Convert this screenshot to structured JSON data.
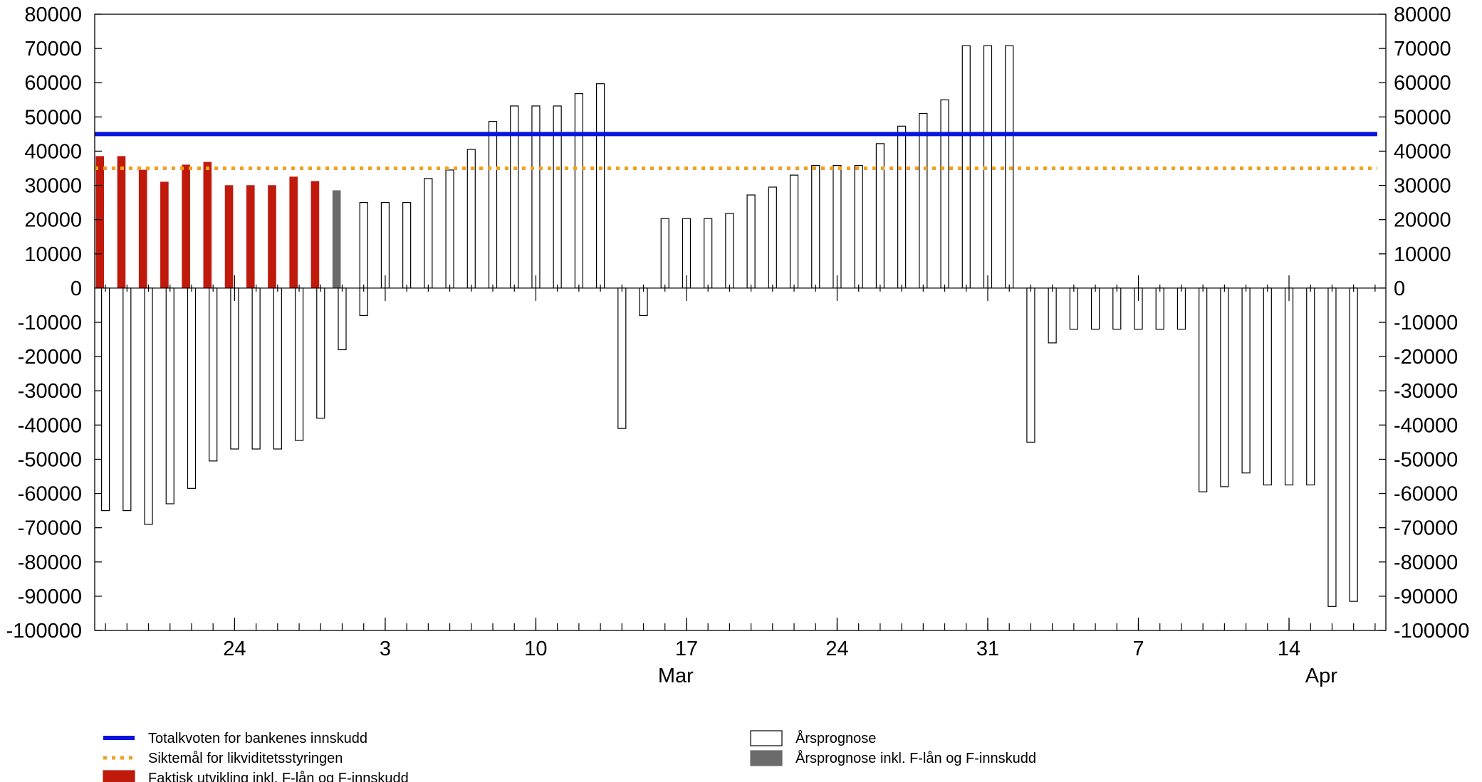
{
  "chart_data": {
    "type": "bar",
    "title": "",
    "xlabel": "",
    "ylabel": "",
    "ylim": [
      -100000,
      80000
    ],
    "y_ticks": [
      80000,
      70000,
      60000,
      50000,
      40000,
      30000,
      20000,
      10000,
      0,
      -10000,
      -20000,
      -30000,
      -40000,
      -50000,
      -60000,
      -70000,
      -80000,
      -90000,
      -100000
    ],
    "y_tick_labels": [
      "80000",
      "70000",
      "60000",
      "50000",
      "40000",
      "30000",
      "20000",
      "10000",
      "0",
      "-10000",
      "-20000",
      "-30000",
      "-40000",
      "-50000",
      "-60000",
      "-70000",
      "-80000",
      "-90000",
      "-100000"
    ],
    "x_tick_labels": [
      {
        "day": 6,
        "label": "24"
      },
      {
        "day": 13,
        "label": "3"
      },
      {
        "day": 20,
        "label": "10"
      },
      {
        "day": 27,
        "label": "17"
      },
      {
        "day": 34,
        "label": "24"
      },
      {
        "day": 41,
        "label": "31"
      },
      {
        "day": 48,
        "label": "7"
      },
      {
        "day": 55,
        "label": "14"
      }
    ],
    "month_labels": [
      {
        "day": 26.5,
        "label": "Mar"
      },
      {
        "day": 56.5,
        "label": "Apr"
      }
    ],
    "x_range": [
      -0.5,
      59.5
    ],
    "lines": [
      {
        "name": "Totalkvoten for bankenes innskudd",
        "y": 45000,
        "x_start": -0.5,
        "x_end": 59.1,
        "color": "#0a14dc",
        "style": "solid"
      },
      {
        "name": "Siktemål for likviditetsstyringen",
        "y": 35000,
        "x_start": -0.5,
        "x_end": 59.1,
        "color": "#f0a020",
        "style": "dotted"
      }
    ],
    "series": [
      {
        "name": "Faktisk utvikling inkl. F-lån og F-innskudd",
        "color": "#c01a0c",
        "points": [
          [
            0,
            38500
          ],
          [
            1,
            38500
          ],
          [
            2,
            34500
          ],
          [
            3,
            31000
          ],
          [
            4,
            36000
          ],
          [
            5,
            36800
          ],
          [
            6,
            30000
          ],
          [
            7,
            30000
          ],
          [
            8,
            30000
          ],
          [
            9,
            32500
          ],
          [
            10,
            31200
          ]
        ]
      },
      {
        "name": "Årsprognose inkl. F-lån og F-innskudd",
        "color": "#6b6b6b",
        "points": [
          [
            11,
            28500
          ]
        ]
      },
      {
        "name": "Årsprognose",
        "color": "#ffffff",
        "points": [
          [
            0,
            -65000
          ],
          [
            1,
            -65000
          ],
          [
            2,
            -69000
          ],
          [
            3,
            -63000
          ],
          [
            4,
            -58500
          ],
          [
            5,
            -50500
          ],
          [
            6,
            -47000
          ],
          [
            7,
            -47000
          ],
          [
            8,
            -47000
          ],
          [
            9,
            -44500
          ],
          [
            10,
            -38000
          ],
          [
            11,
            -18000
          ],
          [
            12,
            -8000
          ],
          [
            12,
            25000
          ],
          [
            13,
            25000
          ],
          [
            14,
            25000
          ],
          [
            15,
            32000
          ],
          [
            16,
            34500
          ],
          [
            17,
            40500
          ],
          [
            18,
            48700
          ],
          [
            19,
            53200
          ],
          [
            20,
            53200
          ],
          [
            21,
            53200
          ],
          [
            22,
            56800
          ],
          [
            23,
            59700
          ],
          [
            24,
            -41000
          ],
          [
            25,
            -8000
          ],
          [
            26,
            20300
          ],
          [
            27,
            20300
          ],
          [
            28,
            20300
          ],
          [
            29,
            21800
          ],
          [
            30,
            27200
          ],
          [
            31,
            29500
          ],
          [
            32,
            33000
          ],
          [
            33,
            35800
          ],
          [
            34,
            35800
          ],
          [
            35,
            35800
          ],
          [
            36,
            42200
          ],
          [
            37,
            47300
          ],
          [
            38,
            51000
          ],
          [
            39,
            55000
          ],
          [
            40,
            70800
          ],
          [
            41,
            70800
          ],
          [
            42,
            70800
          ],
          [
            43,
            -45000
          ],
          [
            44,
            -16000
          ],
          [
            45,
            -12000
          ],
          [
            46,
            -12000
          ],
          [
            47,
            -12000
          ],
          [
            48,
            -12000
          ],
          [
            49,
            -12000
          ],
          [
            50,
            -12000
          ],
          [
            51,
            -59500
          ],
          [
            52,
            -58000
          ],
          [
            53,
            -54000
          ],
          [
            54,
            -57500
          ],
          [
            55,
            -57500
          ],
          [
            56,
            -57500
          ],
          [
            57,
            -93000
          ],
          [
            58,
            -91500
          ]
        ]
      }
    ],
    "legend": [
      {
        "kind": "line-solid",
        "color": "#0a14dc",
        "label": "Totalkvoten for bankenes innskudd"
      },
      {
        "kind": "line-dotted",
        "color": "#f0a020",
        "label": "Siktemål for likviditetsstyringen"
      },
      {
        "kind": "box",
        "color": "#c01a0c",
        "label": "Faktisk utvikling inkl. F-lån og F-innskudd"
      },
      {
        "kind": "box",
        "color": "#ffffff",
        "label": "Årsprognose"
      },
      {
        "kind": "box",
        "color": "#6b6b6b",
        "label": "Årsprognose inkl. F-lån og F-innskudd"
      }
    ],
    "legend_placement": "bottom",
    "grid": false
  }
}
